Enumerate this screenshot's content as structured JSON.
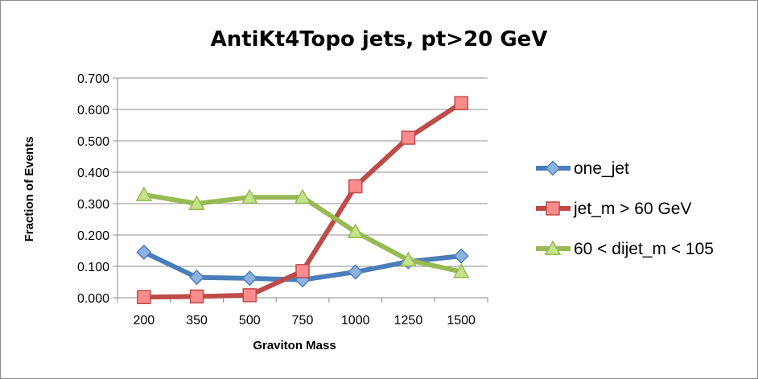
{
  "chart_data": {
    "type": "line",
    "title": "AntiKt4Topo jets, pt>20 GeV",
    "xlabel": "Graviton Mass",
    "ylabel": "Fraction of Events",
    "categories": [
      "200",
      "350",
      "500",
      "750",
      "1000",
      "1250",
      "1500"
    ],
    "ylim": [
      0,
      0.7
    ],
    "yticks": [
      "0.000",
      "0.100",
      "0.200",
      "0.300",
      "0.400",
      "0.500",
      "0.600",
      "0.700"
    ],
    "grid": "horizontal",
    "legend_position": "right",
    "series": [
      {
        "name": "one_jet",
        "color": "#4a7ebb",
        "marker": "diamond",
        "values": [
          0.145,
          0.065,
          0.062,
          0.057,
          0.082,
          0.115,
          0.133
        ]
      },
      {
        "name": "jet_m > 60 GeV",
        "color": "#be4b48",
        "marker": "square",
        "values": [
          0.002,
          0.004,
          0.008,
          0.085,
          0.355,
          0.51,
          0.62
        ]
      },
      {
        "name": "60 < dijet_m < 105",
        "color": "#98b954",
        "marker": "triangle",
        "values": [
          0.328,
          0.3,
          0.32,
          0.32,
          0.21,
          0.12,
          0.083
        ]
      }
    ]
  }
}
